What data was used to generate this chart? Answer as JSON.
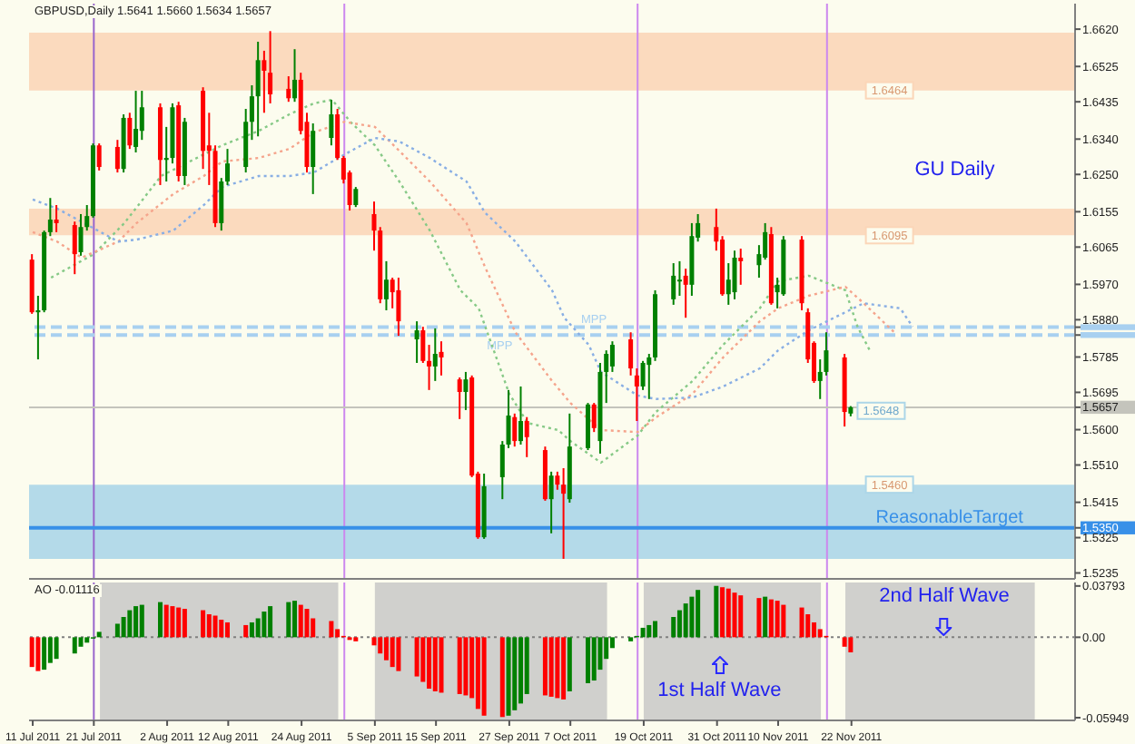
{
  "chart_data": [
    {
      "type": "candlestick",
      "title": "GBPUSD,Daily 1.5641 1.5660 1.5634 1.5657",
      "annotations": [
        "GU Daily",
        {
          "text": "1.5648",
          "x": "2011-11-23",
          "y": 1.5648
        }
      ],
      "x": [
        "2011-07-11",
        "2011-07-12",
        "2011-07-13",
        "2011-07-14",
        "2011-07-15",
        "2011-07-18",
        "2011-07-19",
        "2011-07-20",
        "2011-07-21",
        "2011-07-22",
        "2011-07-25",
        "2011-07-26",
        "2011-07-27",
        "2011-07-28",
        "2011-07-29",
        "2011-08-01",
        "2011-08-02",
        "2011-08-03",
        "2011-08-04",
        "2011-08-05",
        "2011-08-08",
        "2011-08-09",
        "2011-08-10",
        "2011-08-11",
        "2011-08-12",
        "2011-08-15",
        "2011-08-16",
        "2011-08-17",
        "2011-08-18",
        "2011-08-19",
        "2011-08-22",
        "2011-08-23",
        "2011-08-24",
        "2011-08-25",
        "2011-08-26",
        "2011-08-29",
        "2011-08-30",
        "2011-08-31",
        "2011-09-01",
        "2011-09-02",
        "2011-09-05",
        "2011-09-06",
        "2011-09-07",
        "2011-09-08",
        "2011-09-09",
        "2011-09-12",
        "2011-09-13",
        "2011-09-14",
        "2011-09-15",
        "2011-09-16",
        "2011-09-19",
        "2011-09-20",
        "2011-09-21",
        "2011-09-22",
        "2011-09-23",
        "2011-09-26",
        "2011-09-27",
        "2011-09-28",
        "2011-09-29",
        "2011-09-30",
        "2011-10-03",
        "2011-10-04",
        "2011-10-05",
        "2011-10-06",
        "2011-10-07",
        "2011-10-10",
        "2011-10-11",
        "2011-10-12",
        "2011-10-13",
        "2011-10-14",
        "2011-10-17",
        "2011-10-18",
        "2011-10-19",
        "2011-10-20",
        "2011-10-21",
        "2011-10-24",
        "2011-10-25",
        "2011-10-26",
        "2011-10-27",
        "2011-10-28",
        "2011-10-31",
        "2011-11-01",
        "2011-11-02",
        "2011-11-03",
        "2011-11-04",
        "2011-11-07",
        "2011-11-08",
        "2011-11-09",
        "2011-11-10",
        "2011-11-11",
        "2011-11-14",
        "2011-11-15",
        "2011-11-16",
        "2011-11-17",
        "2011-11-18",
        "2011-11-21",
        "2011-11-22"
      ],
      "ohlc": [
        [
          1.6033,
          1.6047,
          1.5895,
          1.5899
        ],
        [
          1.5899,
          1.5941,
          1.5779,
          1.5904
        ],
        [
          1.5904,
          1.6107,
          1.5899,
          1.6103
        ],
        [
          1.6103,
          1.619,
          1.6093,
          1.6135
        ],
        [
          1.6135,
          1.6172,
          1.6103,
          1.6126
        ],
        [
          1.6121,
          1.613,
          1.5996,
          1.6047
        ],
        [
          1.6052,
          1.6149,
          1.6043,
          1.6116
        ],
        [
          1.6116,
          1.6172,
          1.6107,
          1.6144
        ],
        [
          1.6144,
          1.6329,
          1.614,
          1.6324
        ],
        [
          1.6324,
          1.6329,
          1.626,
          1.6269
        ],
        [
          1.632,
          1.6338,
          1.6255,
          1.6264
        ],
        [
          1.6264,
          1.6403,
          1.6255,
          1.6394
        ],
        [
          1.6394,
          1.6407,
          1.6315,
          1.6324
        ],
        [
          1.632,
          1.6463,
          1.6306,
          1.6366
        ],
        [
          1.6361,
          1.6463,
          1.6338,
          1.6421
        ],
        [
          1.6421,
          1.6431,
          1.6223,
          1.6287
        ],
        [
          1.6287,
          1.6371,
          1.6232,
          1.6292
        ],
        [
          1.6292,
          1.6431,
          1.6278,
          1.6421
        ],
        [
          1.6426,
          1.6435,
          1.6232,
          1.6246
        ],
        [
          1.6246,
          1.6394,
          1.6223,
          1.6384
        ],
        [
          1.6463,
          1.6472,
          1.6264,
          1.631
        ],
        [
          1.6324,
          1.6407,
          1.6223,
          1.631
        ],
        [
          1.631,
          1.6324,
          1.6116,
          1.6126
        ],
        [
          1.6126,
          1.6241,
          1.6107,
          1.6232
        ],
        [
          1.6232,
          1.6315,
          1.6223,
          1.6278
        ],
        [
          1.6269,
          1.6417,
          1.6255,
          1.6384
        ],
        [
          1.6384,
          1.6477,
          1.6338,
          1.6449
        ],
        [
          1.6449,
          1.6588,
          1.6347,
          1.6541
        ],
        [
          1.6541,
          1.6565,
          1.6407,
          1.6514
        ],
        [
          1.6509,
          1.6615,
          1.6431,
          1.6454
        ],
        [
          1.6468,
          1.65,
          1.6435,
          1.6444
        ],
        [
          1.6444,
          1.6569,
          1.6435,
          1.6491
        ],
        [
          1.6491,
          1.6509,
          1.6352,
          1.6361
        ],
        [
          1.6384,
          1.6407,
          1.6255,
          1.6269
        ],
        [
          1.6269,
          1.638,
          1.62,
          1.6361
        ],
        [
          1.6343,
          1.644,
          1.6324,
          1.6403
        ],
        [
          1.6403,
          1.6417,
          1.6287,
          1.6292
        ],
        [
          1.6292,
          1.6297,
          1.6227,
          1.6237
        ],
        [
          1.6255,
          1.626,
          1.6158,
          1.6172
        ],
        [
          1.6172,
          1.6218,
          1.6167,
          1.6213
        ],
        [
          1.6149,
          1.6181,
          1.6056,
          1.6107
        ],
        [
          1.6107,
          1.6116,
          1.5922,
          1.5932
        ],
        [
          1.5932,
          1.6029,
          1.5904,
          1.5982
        ],
        [
          1.5982,
          1.5987,
          1.5909,
          1.595
        ],
        [
          1.5955,
          1.5987,
          1.5839,
          1.5876
        ],
        [
          1.583,
          1.5876,
          1.577,
          1.5853
        ],
        [
          1.5853,
          1.5862,
          1.577,
          1.5775
        ],
        [
          1.5775,
          1.5816,
          1.5701,
          1.5761
        ],
        [
          1.5761,
          1.5858,
          1.5724,
          1.5793
        ],
        [
          1.5798,
          1.5825,
          1.5738,
          1.5784
        ],
        [
          1.5728,
          1.5733,
          1.5627,
          1.5696
        ],
        [
          1.5696,
          1.5747,
          1.565,
          1.5728
        ],
        [
          1.5733,
          1.5738,
          1.5479,
          1.5483
        ],
        [
          1.5488,
          1.5493,
          1.5322,
          1.5326
        ],
        [
          1.5326,
          1.5488,
          1.5322,
          1.5456
        ],
        [
          1.5479,
          1.5571,
          1.5423,
          1.5562
        ],
        [
          1.5562,
          1.5701,
          1.5553,
          1.5636
        ],
        [
          1.5632,
          1.5641,
          1.5557,
          1.5571
        ],
        [
          1.5571,
          1.571,
          1.5562,
          1.5622
        ],
        [
          1.5622,
          1.5632,
          1.553,
          1.5581
        ],
        [
          1.5548,
          1.5557,
          1.5419,
          1.5423
        ],
        [
          1.5423,
          1.5493,
          1.5336,
          1.5483
        ],
        [
          1.5483,
          1.5493,
          1.5447,
          1.546
        ],
        [
          1.546,
          1.5502,
          1.5271,
          1.5437
        ],
        [
          1.5423,
          1.5641,
          1.5414,
          1.5557
        ],
        [
          1.5553,
          1.5668,
          1.5548,
          1.5664
        ],
        [
          1.5664,
          1.5668,
          1.5594,
          1.5604
        ],
        [
          1.5571,
          1.577,
          1.5539,
          1.5747
        ],
        [
          1.5747,
          1.5802,
          1.5668,
          1.5793
        ],
        [
          1.5761,
          1.5825,
          1.5747,
          1.5816
        ],
        [
          1.583,
          1.5848,
          1.5738,
          1.5756
        ],
        [
          1.5738,
          1.5756,
          1.5622,
          1.571
        ],
        [
          1.571,
          1.5775,
          1.5701,
          1.577
        ],
        [
          1.5765,
          1.5793,
          1.5678,
          1.5784
        ],
        [
          1.5784,
          1.5955,
          1.5775,
          1.5945
        ],
        [
          1.5932,
          1.6024,
          1.5918,
          1.5992
        ],
        [
          1.5978,
          1.6029,
          1.5941,
          1.5982
        ],
        [
          1.5992,
          1.601,
          1.5885,
          1.5969
        ],
        [
          1.5969,
          1.6126,
          1.5941,
          1.6093
        ],
        [
          1.6089,
          1.6149,
          1.6079,
          1.6126
        ],
        [
          1.6116,
          1.6163,
          1.6056,
          1.6079
        ],
        [
          1.6084,
          1.6093,
          1.5941,
          1.5945
        ],
        [
          1.5945,
          1.6024,
          1.5918,
          1.5982
        ],
        [
          1.595,
          1.6056,
          1.5932,
          1.6038
        ],
        [
          1.6038,
          1.6061,
          1.5969,
          1.6029
        ],
        [
          1.6019,
          1.607,
          1.5987,
          1.6047
        ],
        [
          1.6038,
          1.6126,
          1.6033,
          1.6103
        ],
        [
          1.6098,
          1.6116,
          1.5918,
          1.5922
        ],
        [
          1.595,
          1.5987,
          1.5909,
          1.5969
        ],
        [
          1.5945,
          1.6093,
          1.5941,
          1.6084
        ],
        [
          1.6084,
          1.6093,
          1.5904,
          1.5922
        ],
        [
          1.5899,
          1.5909,
          1.577,
          1.5779
        ],
        [
          1.5821,
          1.5825,
          1.5719,
          1.5724
        ],
        [
          1.5724,
          1.5779,
          1.5678,
          1.5747
        ],
        [
          1.5747,
          1.5848,
          1.5738,
          1.5802
        ],
        [
          1.5784,
          1.5793,
          1.5608,
          1.5645
        ],
        [
          1.5641,
          1.566,
          1.5634,
          1.5657
        ]
      ],
      "colors": [
        "#ff0000",
        "#008000",
        "#008000",
        "#008000",
        "#ff0000",
        "#ff0000",
        "#008000",
        "#008000",
        "#008000",
        "#ff0000",
        "#ff0000",
        "#008000",
        "#ff0000",
        "#008000",
        "#008000",
        "#ff0000",
        "#008000",
        "#008000",
        "#ff0000",
        "#008000",
        "#ff0000",
        "#ff0000",
        "#ff0000",
        "#008000",
        "#008000",
        "#008000",
        "#008000",
        "#008000",
        "#ff0000",
        "#ff0000",
        "#ff0000",
        "#008000",
        "#ff0000",
        "#ff0000",
        "#008000",
        "#008000",
        "#ff0000",
        "#ff0000",
        "#ff0000",
        "#008000",
        "#ff0000",
        "#ff0000",
        "#008000",
        "#ff0000",
        "#ff0000",
        "#008000",
        "#ff0000",
        "#ff0000",
        "#008000",
        "#ff0000",
        "#ff0000",
        "#008000",
        "#ff0000",
        "#ff0000",
        "#008000",
        "#008000",
        "#008000",
        "#ff0000",
        "#008000",
        "#ff0000",
        "#ff0000",
        "#008000",
        "#ff0000",
        "#ff0000",
        "#008000",
        "#008000",
        "#ff0000",
        "#008000",
        "#008000",
        "#008000",
        "#ff0000",
        "#ff0000",
        "#008000",
        "#008000",
        "#008000",
        "#008000",
        "#008000",
        "#ff0000",
        "#008000",
        "#008000",
        "#ff0000",
        "#ff0000",
        "#008000",
        "#008000",
        "#ff0000",
        "#008000",
        "#008000",
        "#ff0000",
        "#008000",
        "#008000",
        "#ff0000",
        "#ff0000",
        "#ff0000",
        "#008000",
        "#008000",
        "#ff0000",
        "#008000"
      ],
      "series": [
        {
          "type": "line",
          "color": "#86c986",
          "x": [
            "2011-07-14",
            "2011-07-21",
            "2011-07-26",
            "2011-08-01",
            "2011-08-08",
            "2011-08-11",
            "2011-08-17",
            "2011-08-22",
            "2011-08-26",
            "2011-08-29",
            "2011-09-01",
            "2011-09-05",
            "2011-09-09",
            "2011-09-14",
            "2011-09-19",
            "2011-09-22",
            "2011-09-27",
            "2011-09-30",
            "2011-10-05",
            "2011-10-07",
            "2011-10-12",
            "2011-10-18",
            "2011-10-21",
            "2011-10-27",
            "2011-11-01",
            "2011-11-07",
            "2011-11-10",
            "2011-11-15",
            "2011-11-21",
            "2011-11-23",
            "2011-11-25"
          ],
          "values": [
            1.5987,
            1.6047,
            1.6126,
            1.6246,
            1.6301,
            1.6324,
            1.6361,
            1.6403,
            1.6431,
            1.644,
            1.6384,
            1.6324,
            1.6232,
            1.6107,
            1.5955,
            1.5909,
            1.5691,
            1.5617,
            1.5599,
            1.5571,
            1.5516,
            1.5585,
            1.5645,
            1.5724,
            1.5816,
            1.5909,
            1.5978,
            1.5992,
            1.5955,
            1.5862,
            1.5802
          ]
        },
        {
          "type": "line",
          "color": "#f5a48c",
          "x": [
            "2011-07-11",
            "2011-07-15",
            "2011-07-19",
            "2011-07-25",
            "2011-07-28",
            "2011-08-03",
            "2011-08-08",
            "2011-08-11",
            "2011-08-17",
            "2011-08-22",
            "2011-08-26",
            "2011-08-31",
            "2011-09-05",
            "2011-09-09",
            "2011-09-14",
            "2011-09-20",
            "2011-09-23",
            "2011-09-28",
            "2011-10-04",
            "2011-10-07",
            "2011-10-12",
            "2011-10-18",
            "2011-10-21",
            "2011-10-27",
            "2011-11-01",
            "2011-11-07",
            "2011-11-10",
            "2011-11-15",
            "2011-11-21",
            "2011-11-24",
            "2011-11-29"
          ],
          "values": [
            1.6103,
            1.6079,
            1.6038,
            1.6079,
            1.6126,
            1.62,
            1.6246,
            1.6283,
            1.6292,
            1.6315,
            1.6357,
            1.6384,
            1.6371,
            1.631,
            1.6232,
            1.6126,
            1.6015,
            1.5848,
            1.5724,
            1.5668,
            1.5599,
            1.5594,
            1.5631,
            1.5691,
            1.5784,
            1.5876,
            1.5909,
            1.5941,
            1.5964,
            1.5922,
            1.5848
          ]
        },
        {
          "type": "line",
          "color": "#88aee4",
          "x": [
            "2011-07-11",
            "2011-07-15",
            "2011-07-25",
            "2011-07-28",
            "2011-08-03",
            "2011-08-08",
            "2011-08-11",
            "2011-08-17",
            "2011-08-22",
            "2011-08-26",
            "2011-08-30",
            "2011-09-05",
            "2011-09-09",
            "2011-09-14",
            "2011-09-20",
            "2011-09-23",
            "2011-09-28",
            "2011-10-04",
            "2011-10-06",
            "2011-10-10",
            "2011-10-12",
            "2011-10-18",
            "2011-10-21",
            "2011-10-27",
            "2011-11-01",
            "2011-11-07",
            "2011-11-10",
            "2011-11-15",
            "2011-11-21",
            "2011-11-24",
            "2011-11-30",
            "2011-12-02"
          ],
          "values": [
            1.6186,
            1.6163,
            1.6079,
            1.6084,
            1.6107,
            1.6172,
            1.6218,
            1.6246,
            1.6246,
            1.6255,
            1.6292,
            1.6343,
            1.6334,
            1.6292,
            1.6232,
            1.6153,
            1.6079,
            1.5955,
            1.5885,
            1.5816,
            1.5747,
            1.5687,
            1.5678,
            1.5682,
            1.571,
            1.5756,
            1.5802,
            1.5853,
            1.5899,
            1.5922,
            1.5909,
            1.5862
          ]
        }
      ],
      "line_style": "dotted",
      "tick_labels": "y",
      "xlim": [
        "2011-07-11",
        "2011-12-28"
      ],
      "ylim": [
        1.522,
        1.6685
      ],
      "yticks": [
        {
          "value": 1.662,
          "label": "1.6620"
        },
        1.6525,
        1.6435,
        {
          "value": 1.634,
          "label": "1.6340"
        },
        {
          "value": 1.625,
          "label": "1.6250"
        },
        1.6155,
        1.6065,
        {
          "value": 1.597,
          "label": "1.5970"
        },
        {
          "value": 1.588,
          "label": "1.5880"
        },
        {
          "value": 1.5861,
          "label": null
        },
        {
          "value": 1.5841,
          "label": null
        },
        1.5785,
        1.5695,
        1.5657,
        {
          "value": 1.56,
          "label": "1.5600"
        },
        {
          "value": 1.551,
          "label": "1.5510"
        },
        1.5415,
        {
          "value": 1.535,
          "label": "1.5350"
        },
        1.5325,
        1.5235
      ],
      "bands": [
        {
          "axis": "y",
          "from": 1.6464,
          "to": 1.6611,
          "label": "1.6464",
          "color": "#fbd6b8"
        },
        {
          "axis": "y",
          "from": 1.6095,
          "to": 1.6163,
          "label": "1.6095",
          "color": "#fbd6b8"
        },
        {
          "axis": "y",
          "from": 1.546,
          "to": 1.5271,
          "label": "1.5460",
          "color": "#acd6e8"
        }
      ],
      "ref_lines": [
        {
          "axis": "x",
          "value": "2011-07-21",
          "color": "#9966cc"
        },
        {
          "axis": "x",
          "value": "2011-08-31",
          "color": "#cc88ee"
        },
        {
          "axis": "x",
          "value": "2011-10-18",
          "color": "#cc88ee"
        },
        {
          "axis": "x",
          "value": "2011-11-18",
          "color": "#cc88ee"
        },
        {
          "axis": "y",
          "value": 1.5861,
          "label": "MPP",
          "color": "#a8d0f0",
          "line_style": "dashed"
        },
        {
          "axis": "y",
          "value": 1.5841,
          "label": "MPP",
          "color": "#a8d0f0",
          "line_style": "dashed"
        },
        {
          "axis": "y",
          "value": 1.535,
          "label": "ReasonableTarget",
          "color": "#3890e8"
        },
        {
          "axis": "y",
          "value": 1.5657,
          "color": "#c4c4bc"
        }
      ]
    },
    {
      "type": "bar",
      "title": "AO -0.01116",
      "annotations": [
        "2nd Half Wave",
        "1st Half Wave"
      ],
      "x": [
        "2011-07-11",
        "2011-07-12",
        "2011-07-13",
        "2011-07-14",
        "2011-07-15",
        "2011-07-18",
        "2011-07-19",
        "2011-07-20",
        "2011-07-21",
        "2011-07-22",
        "2011-07-25",
        "2011-07-26",
        "2011-07-27",
        "2011-07-28",
        "2011-07-29",
        "2011-08-01",
        "2011-08-02",
        "2011-08-03",
        "2011-08-04",
        "2011-08-05",
        "2011-08-08",
        "2011-08-09",
        "2011-08-10",
        "2011-08-11",
        "2011-08-12",
        "2011-08-15",
        "2011-08-16",
        "2011-08-17",
        "2011-08-18",
        "2011-08-19",
        "2011-08-22",
        "2011-08-23",
        "2011-08-24",
        "2011-08-25",
        "2011-08-26",
        "2011-08-29",
        "2011-08-30",
        "2011-08-31",
        "2011-09-01",
        "2011-09-02",
        "2011-09-05",
        "2011-09-06",
        "2011-09-07",
        "2011-09-08",
        "2011-09-09",
        "2011-09-12",
        "2011-09-13",
        "2011-09-14",
        "2011-09-15",
        "2011-09-16",
        "2011-09-19",
        "2011-09-20",
        "2011-09-21",
        "2011-09-22",
        "2011-09-23",
        "2011-09-26",
        "2011-09-27",
        "2011-09-28",
        "2011-09-29",
        "2011-09-30",
        "2011-10-03",
        "2011-10-04",
        "2011-10-05",
        "2011-10-06",
        "2011-10-07",
        "2011-10-10",
        "2011-10-11",
        "2011-10-12",
        "2011-10-13",
        "2011-10-14",
        "2011-10-17",
        "2011-10-18",
        "2011-10-19",
        "2011-10-20",
        "2011-10-21",
        "2011-10-24",
        "2011-10-25",
        "2011-10-26",
        "2011-10-27",
        "2011-10-28",
        "2011-10-31",
        "2011-11-01",
        "2011-11-02",
        "2011-11-03",
        "2011-11-04",
        "2011-11-07",
        "2011-11-08",
        "2011-11-09",
        "2011-11-10",
        "2011-11-11",
        "2011-11-14",
        "2011-11-15",
        "2011-11-16",
        "2011-11-17",
        "2011-11-18",
        "2011-11-21",
        "2011-11-22"
      ],
      "values": [
        -0.022,
        -0.025,
        -0.024,
        -0.019,
        -0.016,
        -0.012,
        -0.007,
        -0.004,
        -0.001,
        0.004,
        0.01,
        0.015,
        0.02,
        0.023,
        0.024,
        0.026,
        0.024,
        0.023,
        0.022,
        0.021,
        0.02,
        0.017,
        0.016,
        0.013,
        0.011,
        0.009,
        0.011,
        0.014,
        0.019,
        0.023,
        0.026,
        0.027,
        0.024,
        0.021,
        0.014,
        0.012,
        0.006,
        0.001,
        -0.002,
        -0.003,
        -0.006,
        -0.012,
        -0.017,
        -0.022,
        -0.025,
        -0.029,
        -0.033,
        -0.038,
        -0.04,
        -0.041,
        -0.042,
        -0.043,
        -0.045,
        -0.053,
        -0.058,
        -0.059,
        -0.058,
        -0.054,
        -0.049,
        -0.042,
        -0.043,
        -0.044,
        -0.045,
        -0.046,
        -0.04,
        -0.034,
        -0.032,
        -0.024,
        -0.016,
        -0.008,
        -0.003,
        0.001,
        0.007,
        0.009,
        0.012,
        0.015,
        0.02,
        0.025,
        0.03,
        0.035,
        0.038,
        0.037,
        0.036,
        0.033,
        0.031,
        0.029,
        0.03,
        0.028,
        0.027,
        0.024,
        0.022,
        0.017,
        0.011,
        0.006,
        0.001,
        -0.007,
        -0.01116
      ],
      "colors": [
        "#ff0000",
        "#ff0000",
        "#008000",
        "#008000",
        "#008000",
        "#008000",
        "#008000",
        "#008000",
        "#008000",
        "#008000",
        "#008000",
        "#008000",
        "#008000",
        "#008000",
        "#008000",
        "#008000",
        "#ff0000",
        "#ff0000",
        "#ff0000",
        "#ff0000",
        "#ff0000",
        "#ff0000",
        "#ff0000",
        "#ff0000",
        "#ff0000",
        "#ff0000",
        "#008000",
        "#008000",
        "#008000",
        "#008000",
        "#008000",
        "#008000",
        "#ff0000",
        "#ff0000",
        "#ff0000",
        "#ff0000",
        "#ff0000",
        "#ff0000",
        "#ff0000",
        "#ff0000",
        "#ff0000",
        "#ff0000",
        "#ff0000",
        "#ff0000",
        "#ff0000",
        "#ff0000",
        "#ff0000",
        "#ff0000",
        "#ff0000",
        "#ff0000",
        "#ff0000",
        "#ff0000",
        "#ff0000",
        "#ff0000",
        "#ff0000",
        "#ff0000",
        "#008000",
        "#008000",
        "#008000",
        "#008000",
        "#ff0000",
        "#ff0000",
        "#ff0000",
        "#ff0000",
        "#008000",
        "#008000",
        "#008000",
        "#008000",
        "#008000",
        "#008000",
        "#008000",
        "#008000",
        "#008000",
        "#008000",
        "#008000",
        "#008000",
        "#008000",
        "#008000",
        "#008000",
        "#008000",
        "#008000",
        "#ff0000",
        "#ff0000",
        "#ff0000",
        "#ff0000",
        "#ff0000",
        "#008000",
        "#ff0000",
        "#ff0000",
        "#ff0000",
        "#ff0000",
        "#ff0000",
        "#ff0000",
        "#ff0000",
        "#ff0000",
        "#ff0000",
        "#ff0000"
      ],
      "xlim": [
        "2011-07-11",
        "2011-12-28"
      ],
      "xticks": [
        {
          "value": "2011-07-11",
          "label": "11 Jul 2011"
        },
        {
          "value": "2011-07-21",
          "label": "21 Jul 2011"
        },
        {
          "value": "2011-08-02",
          "label": "2 Aug 2011"
        },
        {
          "value": "2011-08-12",
          "label": "12 Aug 2011"
        },
        {
          "value": "2011-08-24",
          "label": "24 Aug 2011"
        },
        {
          "value": "2011-09-05",
          "label": "5 Sep 2011"
        },
        {
          "value": "2011-09-15",
          "label": "15 Sep 2011"
        },
        {
          "value": "2011-09-27",
          "label": "27 Sep 2011"
        },
        {
          "value": "2011-10-07",
          "label": "7 Oct 2011"
        },
        {
          "value": "2011-10-19",
          "label": "19 Oct 2011"
        },
        {
          "value": "2011-10-31",
          "label": "31 Oct 2011"
        },
        {
          "value": "2011-11-10",
          "label": "10 Nov 2011"
        },
        {
          "value": "2011-11-22",
          "label": "22 Nov 2011"
        }
      ],
      "ylim": [
        -0.0615,
        0.0405
      ],
      "yticks": [
        0.03793,
        {
          "value": 0,
          "label": "0.00"
        },
        -0.05949
      ],
      "bands": [
        {
          "axis": "x",
          "from": "2011-07-22",
          "to": "2011-08-30",
          "color": "#c4c4c4"
        },
        {
          "axis": "x",
          "from": "2011-09-05",
          "to": "2011-10-13",
          "color": "#c4c4c4"
        },
        {
          "axis": "x",
          "from": "2011-10-19",
          "to": "2011-11-17",
          "color": "#c4c4c4"
        },
        {
          "axis": "x",
          "from": "2011-11-21",
          "to": "2011-12-22",
          "color": "#c4c4c4"
        }
      ],
      "ref_lines": [
        {
          "axis": "x",
          "value": "2011-07-21",
          "color": "#9966cc"
        },
        {
          "axis": "x",
          "value": "2011-08-31",
          "color": "#cc88ee"
        },
        {
          "axis": "x",
          "value": "2011-10-18",
          "color": "#cc88ee"
        },
        {
          "axis": "x",
          "value": "2011-11-18",
          "color": "#cc88ee"
        },
        {
          "axis": "y",
          "value": 0,
          "color": "#808080",
          "line_style": "dotted"
        }
      ]
    }
  ]
}
